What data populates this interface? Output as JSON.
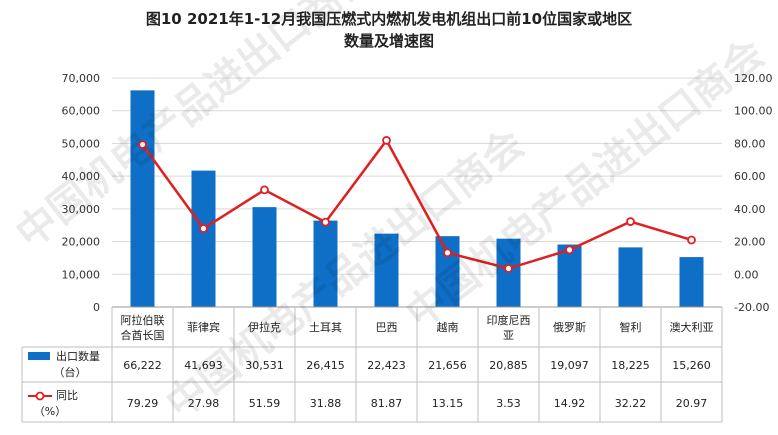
{
  "chart_data": {
    "type": "bar",
    "title": "图10 2021年1-12月我国压燃式内燃机发电机组出口前10位国家或地区",
    "subtitle": "数量及增速图",
    "categories": [
      "阿拉伯联合酋长国",
      "菲律宾",
      "伊拉克",
      "土耳其",
      "巴西",
      "越南",
      "印度尼西亚",
      "俄罗斯",
      "智利",
      "澳大利亚"
    ],
    "category_display": [
      [
        "阿拉伯联",
        "合酋长国"
      ],
      [
        "菲律宾"
      ],
      [
        "伊拉克"
      ],
      [
        "土耳其"
      ],
      [
        "巴西"
      ],
      [
        "越南"
      ],
      [
        "印度尼西",
        "亚"
      ],
      [
        "俄罗斯"
      ],
      [
        "智利"
      ],
      [
        "澳大利亚"
      ]
    ],
    "series": [
      {
        "name": "出口数量",
        "unit": "（台）",
        "type": "bar",
        "axis": "left",
        "color": "#0F6FC6",
        "values": [
          66222,
          41693,
          30531,
          26415,
          22423,
          21656,
          20885,
          19097,
          18225,
          15260
        ],
        "value_labels": [
          "66,222",
          "41,693",
          "30,531",
          "26,415",
          "22,423",
          "21,656",
          "20,885",
          "19,097",
          "18,225",
          "15,260"
        ]
      },
      {
        "name": "同比",
        "unit": "（%）",
        "type": "line",
        "axis": "right",
        "color": "#E02020",
        "values": [
          79.29,
          27.98,
          51.59,
          31.88,
          81.87,
          13.15,
          3.53,
          14.92,
          32.22,
          20.97
        ],
        "value_labels": [
          "79.29",
          "27.98",
          "51.59",
          "31.88",
          "81.87",
          "13.15",
          "3.53",
          "14.92",
          "32.22",
          "20.97"
        ]
      }
    ],
    "y_left": {
      "min": 0,
      "max": 70000,
      "ticks": [
        "0",
        "10,000",
        "20,000",
        "30,000",
        "40,000",
        "50,000",
        "60,000",
        "70,000"
      ]
    },
    "y_right": {
      "min": -20,
      "max": 120,
      "ticks": [
        "-20.00",
        "0.00",
        "20.00",
        "40.00",
        "60.00",
        "80.00",
        "100.00",
        "120.00"
      ]
    },
    "watermark": "中国机电产品进出口商会"
  }
}
